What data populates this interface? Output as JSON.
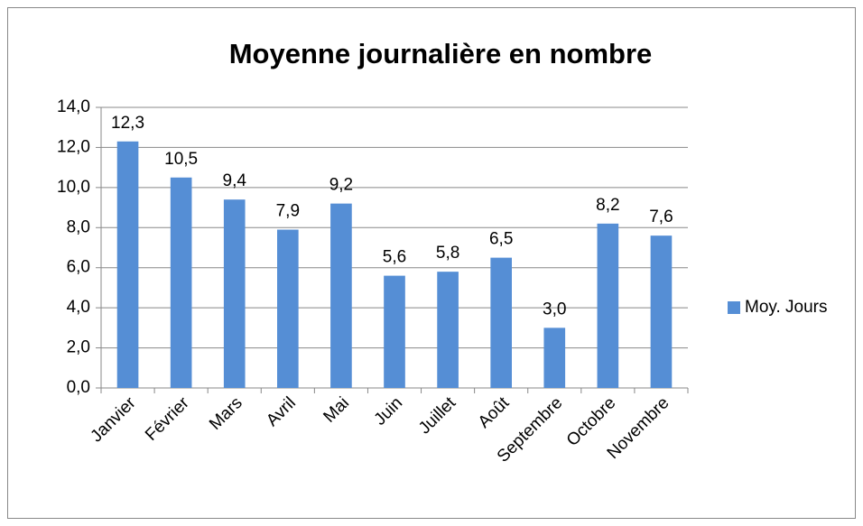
{
  "chart_data": {
    "type": "bar",
    "title": "Moyenne journalière en nombre",
    "categories": [
      "Janvier",
      "Février",
      "Mars",
      "Avril",
      "Mai",
      "Juin",
      "Juillet",
      "Août",
      "Septembre",
      "Octobre",
      "Novembre"
    ],
    "series": [
      {
        "name": "Moy. Jours",
        "color": "#558ed5",
        "values": [
          12.3,
          10.5,
          9.4,
          7.9,
          9.2,
          5.6,
          5.8,
          6.5,
          3.0,
          8.2,
          7.6
        ],
        "value_labels": [
          "12,3",
          "10,5",
          "9,4",
          "7,9",
          "9,2",
          "5,6",
          "5,8",
          "6,5",
          "3,0",
          "8,2",
          "7,6"
        ]
      }
    ],
    "ylim": [
      0,
      14
    ],
    "yticks": [
      {
        "value": 0,
        "label": "0,0"
      },
      {
        "value": 2,
        "label": "2,0"
      },
      {
        "value": 4,
        "label": "4,0"
      },
      {
        "value": 6,
        "label": "6,0"
      },
      {
        "value": 8,
        "label": "8,0"
      },
      {
        "value": 10,
        "label": "10,0"
      },
      {
        "value": 12,
        "label": "12,0"
      },
      {
        "value": 14,
        "label": "14,0"
      }
    ],
    "grid": true,
    "legend": "right"
  }
}
